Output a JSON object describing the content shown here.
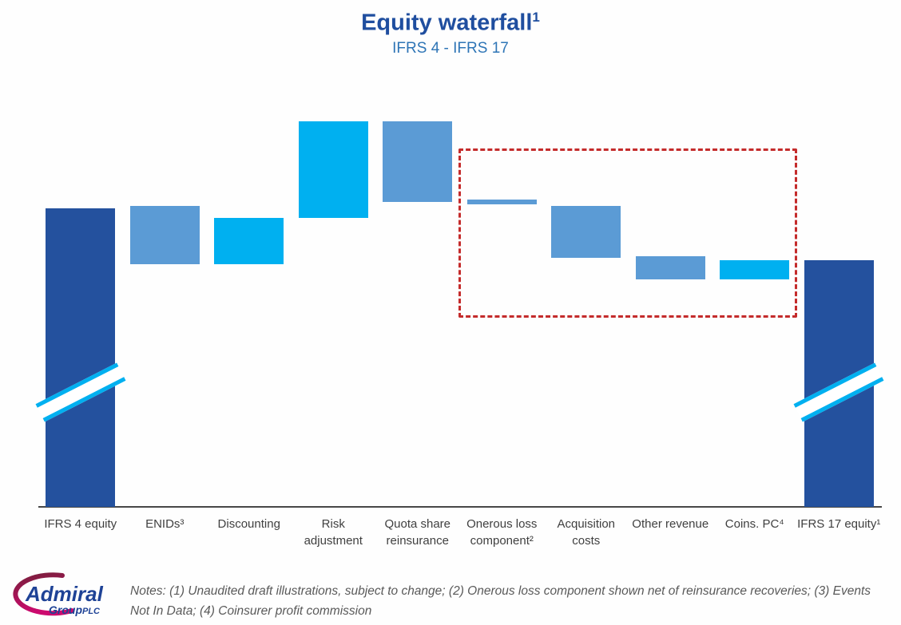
{
  "title": {
    "text": "Equity waterfall",
    "superscript": "1",
    "subtitle": "IFRS 4 - IFRS 17"
  },
  "palette": {
    "title_blue": "#1F4E9F",
    "subtitle_blue": "#2E75B6",
    "dark_blue": "#24519E",
    "steel_blue": "#5B9BD5",
    "cyan": "#00B0F0",
    "highlight_red": "#C42B2B",
    "axis_gray": "#474747",
    "logo_blue": "#1E4296",
    "logo_magenta": "#CC0A6E"
  },
  "chart_data": {
    "type": "waterfall",
    "title": "Equity waterfall¹",
    "subtitle": "IFRS 4 - IFRS 17",
    "value_axis": {
      "shown": false,
      "range": [
        0,
        100
      ],
      "note": "no numeric labels, ticks or gridlines are displayed; from/to values below are relative units (0-100) estimated from bar pixel extents"
    },
    "grid": false,
    "legend": "none",
    "axis_break_note": "both total bars carry a diagonal axis-break mark (drawn not to scale)",
    "bars": [
      {
        "label": "IFRS 4 equity",
        "label_lines": [
          "IFRS 4 equity"
        ],
        "from": 0,
        "to": 77.5,
        "color": "dark_blue",
        "role": "total",
        "axis_break": true
      },
      {
        "label": "ENIDs³",
        "label_lines": [
          "ENIDs³"
        ],
        "from": 63,
        "to": 78,
        "color": "steel_blue",
        "role": "change",
        "axis_break": false
      },
      {
        "label": "Discounting",
        "label_lines": [
          "Discounting"
        ],
        "from": 63,
        "to": 75,
        "color": "cyan",
        "role": "change",
        "axis_break": false
      },
      {
        "label": "Risk adjustment",
        "label_lines": [
          "Risk",
          "adjustment"
        ],
        "from": 75,
        "to": 100,
        "color": "cyan",
        "role": "change",
        "axis_break": false
      },
      {
        "label": "Quota share reinsurance",
        "label_lines": [
          "Quota share",
          "reinsurance"
        ],
        "from": 79,
        "to": 100,
        "color": "steel_blue",
        "role": "change",
        "axis_break": false
      },
      {
        "label": "Onerous loss component²",
        "label_lines": [
          "Onerous loss",
          "component²"
        ],
        "from": 78.4,
        "to": 79.8,
        "color": "steel_blue",
        "role": "change",
        "axis_break": false
      },
      {
        "label": "Acquisition costs",
        "label_lines": [
          "Acquisition",
          "costs"
        ],
        "from": 64.5,
        "to": 78,
        "color": "steel_blue",
        "role": "change",
        "axis_break": false
      },
      {
        "label": "Other revenue",
        "label_lines": [
          "Other revenue"
        ],
        "from": 59,
        "to": 65,
        "color": "steel_blue",
        "role": "change",
        "axis_break": false
      },
      {
        "label": "Coins. PC⁴",
        "label_lines": [
          "Coins. PC⁴"
        ],
        "from": 59,
        "to": 64,
        "color": "cyan",
        "role": "change",
        "axis_break": false
      },
      {
        "label": "IFRS 17 equity¹",
        "label_lines": [
          "IFRS 17 equity¹"
        ],
        "from": 0,
        "to": 64,
        "color": "dark_blue",
        "role": "total",
        "axis_break": true
      }
    ]
  },
  "highlight_box": {
    "style": "dashed",
    "color": "#C42B2B",
    "encloses": [
      "Onerous loss component²",
      "Acquisition costs",
      "Other revenue",
      "Coins. PC⁴"
    ]
  },
  "footer": {
    "notes": "Notes: (1) Unaudited draft illustrations, subject to change; (2) Onerous loss component shown net of reinsurance recoveries; (3) Events Not In Data; (4) Coinsurer profit commission",
    "logo": {
      "brand": "Admiral",
      "sub_word": "Group",
      "sub_suffix": "PLC"
    }
  }
}
